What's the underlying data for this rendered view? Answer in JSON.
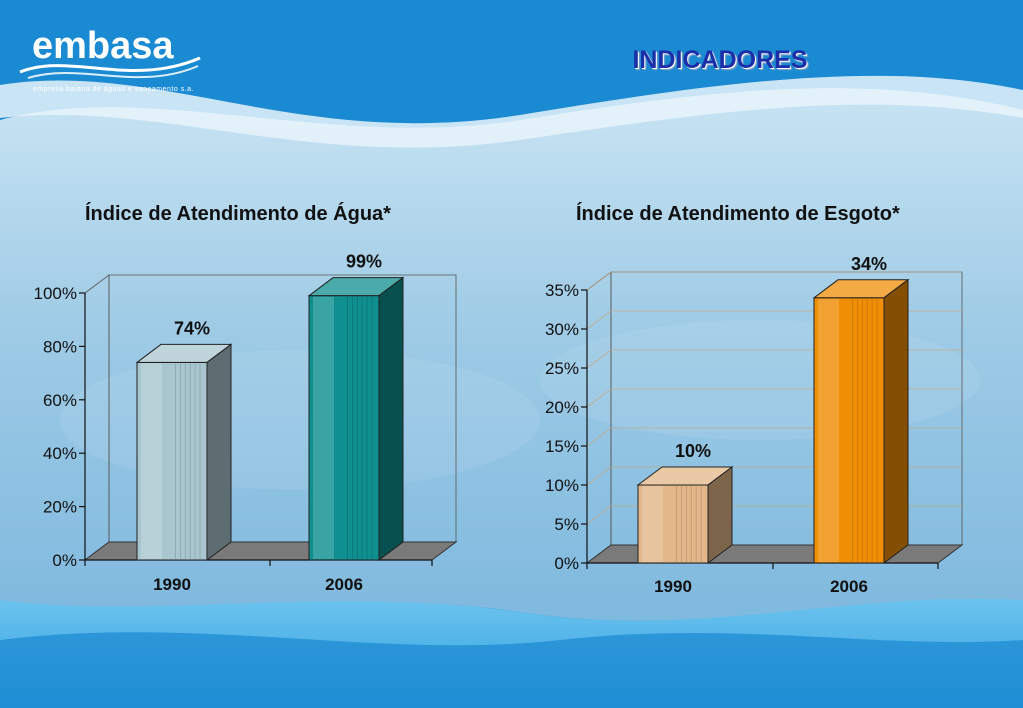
{
  "brand": {
    "name": "embasa",
    "tagline": "empresa baiana de águas e saneamento s.a."
  },
  "slide": {
    "title": "INDICADORES"
  },
  "colors": {
    "agua_1990": "#a9c6cf",
    "agua_2006": "#0f8f8f",
    "esgoto_1990": "#e3b789",
    "esgoto_2006": "#f08e06",
    "background": "#1a8fd6"
  },
  "chart_data": [
    {
      "type": "bar",
      "title": "Índice de Atendimento de Água*",
      "categories": [
        "1990",
        "2006"
      ],
      "values": [
        74,
        99
      ],
      "data_labels": [
        "74%",
        "99%"
      ],
      "yticks": [
        "0%",
        "20%",
        "40%",
        "60%",
        "80%",
        "100%"
      ],
      "ylim": [
        0,
        100
      ],
      "grid": false,
      "style": "3d-bar"
    },
    {
      "type": "bar",
      "title": "Índice de Atendimento de Esgoto*",
      "categories": [
        "1990",
        "2006"
      ],
      "values": [
        10,
        34
      ],
      "data_labels": [
        "10%",
        "34%"
      ],
      "yticks": [
        "0%",
        "5%",
        "10%",
        "15%",
        "20%",
        "25%",
        "30%",
        "35%"
      ],
      "ylim": [
        0,
        35
      ],
      "grid": true,
      "style": "3d-bar"
    }
  ]
}
